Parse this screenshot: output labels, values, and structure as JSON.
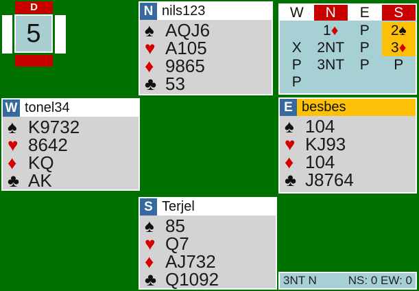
{
  "board": {
    "number": "5",
    "dealer_marker": "D"
  },
  "suit_symbols": {
    "spades": "♠",
    "hearts": "♥",
    "diamonds": "♦",
    "clubs": "♣"
  },
  "suit_colors": {
    "spades": "black",
    "hearts": "red",
    "diamonds": "red",
    "clubs": "black"
  },
  "hands": {
    "north": {
      "seat": "N",
      "name": "nils123",
      "highlighted": false,
      "suits": [
        {
          "suit": "spades",
          "cards": "AQJ6"
        },
        {
          "suit": "hearts",
          "cards": "A105"
        },
        {
          "suit": "diamonds",
          "cards": "9865"
        },
        {
          "suit": "clubs",
          "cards": "53"
        }
      ]
    },
    "west": {
      "seat": "W",
      "name": "tonel34",
      "highlighted": false,
      "suits": [
        {
          "suit": "spades",
          "cards": "K9732"
        },
        {
          "suit": "hearts",
          "cards": "8642"
        },
        {
          "suit": "diamonds",
          "cards": "KQ"
        },
        {
          "suit": "clubs",
          "cards": "AK"
        }
      ]
    },
    "east": {
      "seat": "E",
      "name": "besbes",
      "highlighted": true,
      "suits": [
        {
          "suit": "spades",
          "cards": "104"
        },
        {
          "suit": "hearts",
          "cards": "KJ93"
        },
        {
          "suit": "diamonds",
          "cards": "104"
        },
        {
          "suit": "clubs",
          "cards": "J8764"
        }
      ]
    },
    "south": {
      "seat": "S",
      "name": "Terjel",
      "highlighted": false,
      "suits": [
        {
          "suit": "spades",
          "cards": "85"
        },
        {
          "suit": "hearts",
          "cards": "Q7"
        },
        {
          "suit": "diamonds",
          "cards": "AJ732"
        },
        {
          "suit": "clubs",
          "cards": "Q1092"
        }
      ]
    }
  },
  "auction": {
    "columns": [
      {
        "label": "W",
        "vulnerable": false
      },
      {
        "label": "N",
        "vulnerable": true
      },
      {
        "label": "E",
        "vulnerable": false
      },
      {
        "label": "S",
        "vulnerable": true
      }
    ],
    "rows": [
      [
        {
          "bid": ""
        },
        {
          "bid": "1♦"
        },
        {
          "bid": "P"
        },
        {
          "bid": "2♠",
          "alerted": true
        }
      ],
      [
        {
          "bid": "X"
        },
        {
          "bid": "2NT"
        },
        {
          "bid": "P"
        },
        {
          "bid": "3♦",
          "alerted": true
        }
      ],
      [
        {
          "bid": "P"
        },
        {
          "bid": "3NT"
        },
        {
          "bid": "P"
        },
        {
          "bid": "P"
        }
      ],
      [
        {
          "bid": "P"
        },
        {
          "bid": ""
        },
        {
          "bid": ""
        },
        {
          "bid": ""
        }
      ]
    ]
  },
  "status": {
    "contract": "3NT N",
    "score": "NS: 0 EW: 0"
  },
  "colors": {
    "table_green": "#007000",
    "panel_gray": "#d3d3d3",
    "seat_blue": "#36699e",
    "vul_red": "#c80000",
    "suit_red": "#d40000",
    "highlight_gold": "#ffc107",
    "auction_blue": "#a6d0d4",
    "board_blue": "#a9ced2"
  }
}
